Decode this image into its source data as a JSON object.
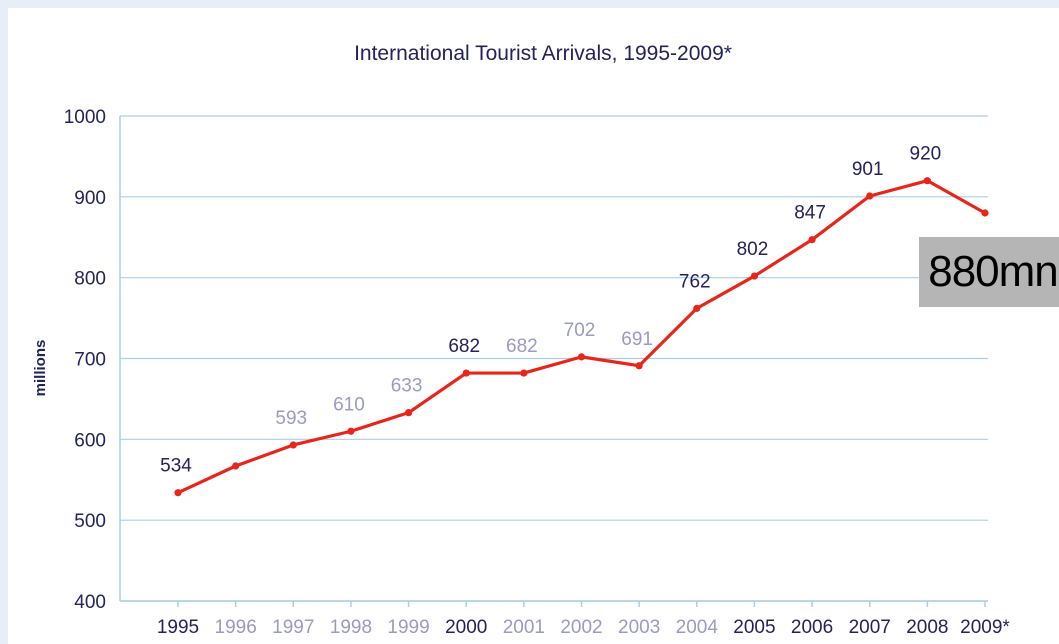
{
  "chart_data": {
    "type": "line",
    "title": "International Tourist Arrivals, 1995-2009*",
    "ylabel": "millions",
    "xlabel": "",
    "ylim": [
      400,
      1000
    ],
    "yticks": [
      400,
      500,
      600,
      700,
      800,
      900,
      1000
    ],
    "grid": true,
    "categories": [
      "1995",
      "1996",
      "1997",
      "1998",
      "1999",
      "2000",
      "2001",
      "2002",
      "2003",
      "2004",
      "2005",
      "2006",
      "2007",
      "2008",
      "2009*"
    ],
    "series": [
      {
        "values": [
          534,
          567,
          593,
          610,
          633,
          682,
          682,
          702,
          691,
          762,
          802,
          847,
          901,
          920,
          880
        ],
        "color": "#e8251a"
      }
    ],
    "data_labels": [
      "534",
      "",
      "593",
      "610",
      "633",
      "682",
      "682",
      "702",
      "691",
      "762",
      "802",
      "847",
      "901",
      "920",
      ""
    ],
    "emphasized_categories": [
      "1995",
      "2000",
      "2005",
      "2006",
      "2007",
      "2008",
      "2009*"
    ],
    "colors": {
      "strong": "#23235b",
      "muted": "#9a9ac4",
      "line": "#e8251a"
    },
    "annotation": "880mn"
  }
}
